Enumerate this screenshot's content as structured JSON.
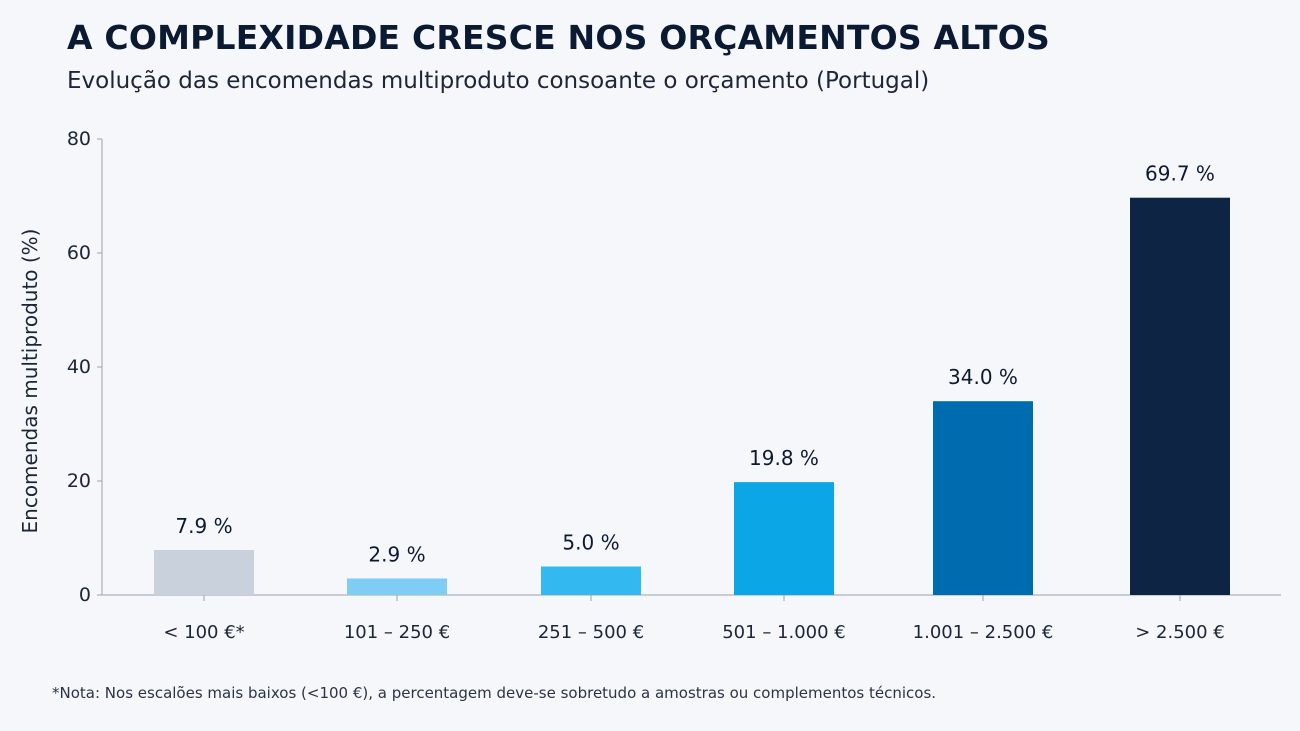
{
  "header": {
    "title": "A COMPLEXIDADE CRESCE NOS ORÇAMENTOS ALTOS",
    "subtitle": "Evolução das encomendas multiproduto consoante o orçamento (Portugal)"
  },
  "footnote": "*Nota: Nos escalões mais baixos (<100 €), a percentagem deve-se sobretudo a amostras ou complementos técnicos.",
  "chart_data": {
    "type": "bar",
    "title": "A COMPLEXIDADE CRESCE NOS ORÇAMENTOS ALTOS",
    "subtitle": "Evolução das encomendas multiproduto consoante o orçamento (Portugal)",
    "xlabel": "",
    "ylabel": "Encomendas multiproduto (%)",
    "categories": [
      "< 100 €*",
      "101 – 250 €",
      "251 – 500 €",
      "501 – 1.000 €",
      "1.001 – 2.500 €",
      "> 2.500 €"
    ],
    "values": [
      7.9,
      2.9,
      5.0,
      19.8,
      34.0,
      69.7
    ],
    "value_labels": [
      "7.9 %",
      "2.9 %",
      "5.0 %",
      "19.8 %",
      "34.0 %",
      "69.7 %"
    ],
    "colors": [
      "#c9d1dc",
      "#7fcdf5",
      "#33b8f0",
      "#0aa6e6",
      "#006cb0",
      "#0e2444"
    ],
    "ylim": [
      0,
      80
    ],
    "yticks": [
      0,
      20,
      40,
      60,
      80
    ],
    "grid": false,
    "legend": "none"
  }
}
